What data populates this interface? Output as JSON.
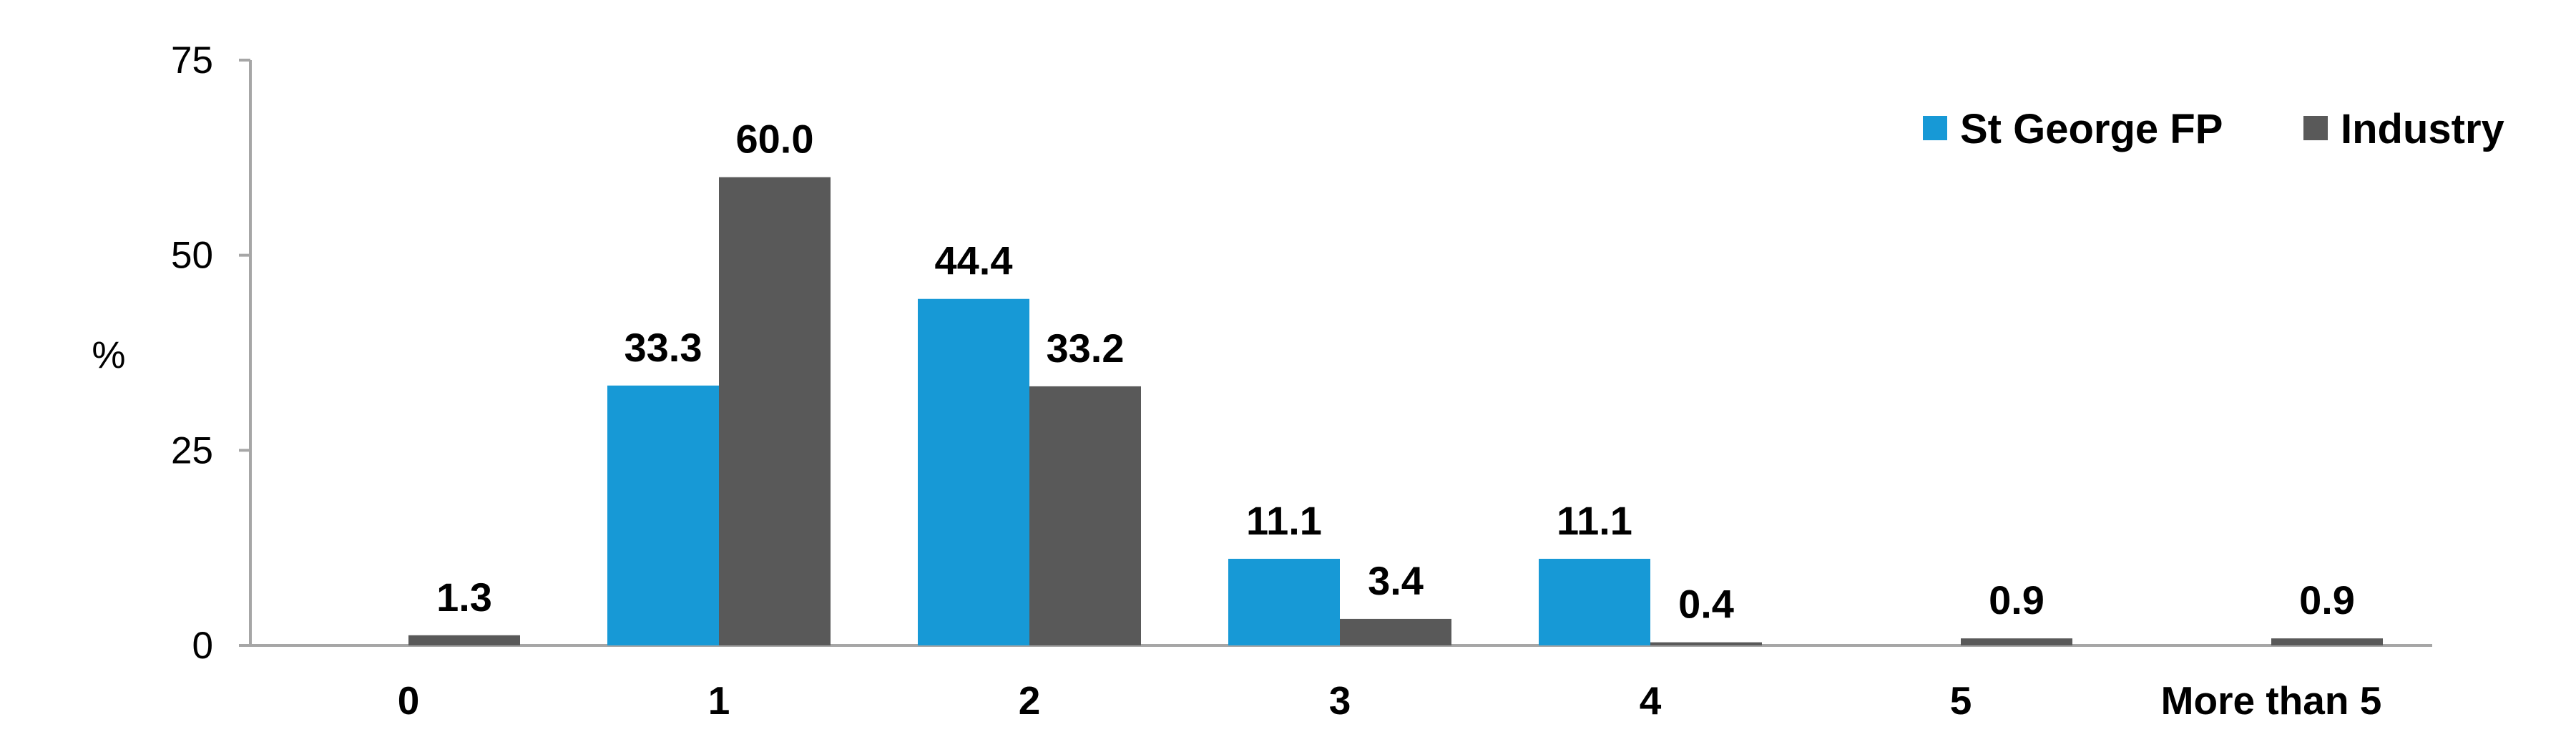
{
  "chart_data": {
    "type": "bar",
    "categories": [
      "0",
      "1",
      "2",
      "3",
      "4",
      "5",
      "More than 5"
    ],
    "series": [
      {
        "name": "St George FP",
        "values": [
          null,
          33.3,
          44.4,
          11.1,
          11.1,
          null,
          null
        ],
        "color": "#1799d6"
      },
      {
        "name": "Industry",
        "values": [
          1.3,
          60.0,
          33.2,
          3.4,
          0.4,
          0.9,
          0.9
        ],
        "color": "#595959"
      }
    ],
    "ylabel": "%",
    "ylim": [
      0,
      75
    ],
    "yticks": [
      "0",
      "25",
      "50",
      "75"
    ],
    "grid": false,
    "legend": "top-right",
    "data_labels": true
  }
}
